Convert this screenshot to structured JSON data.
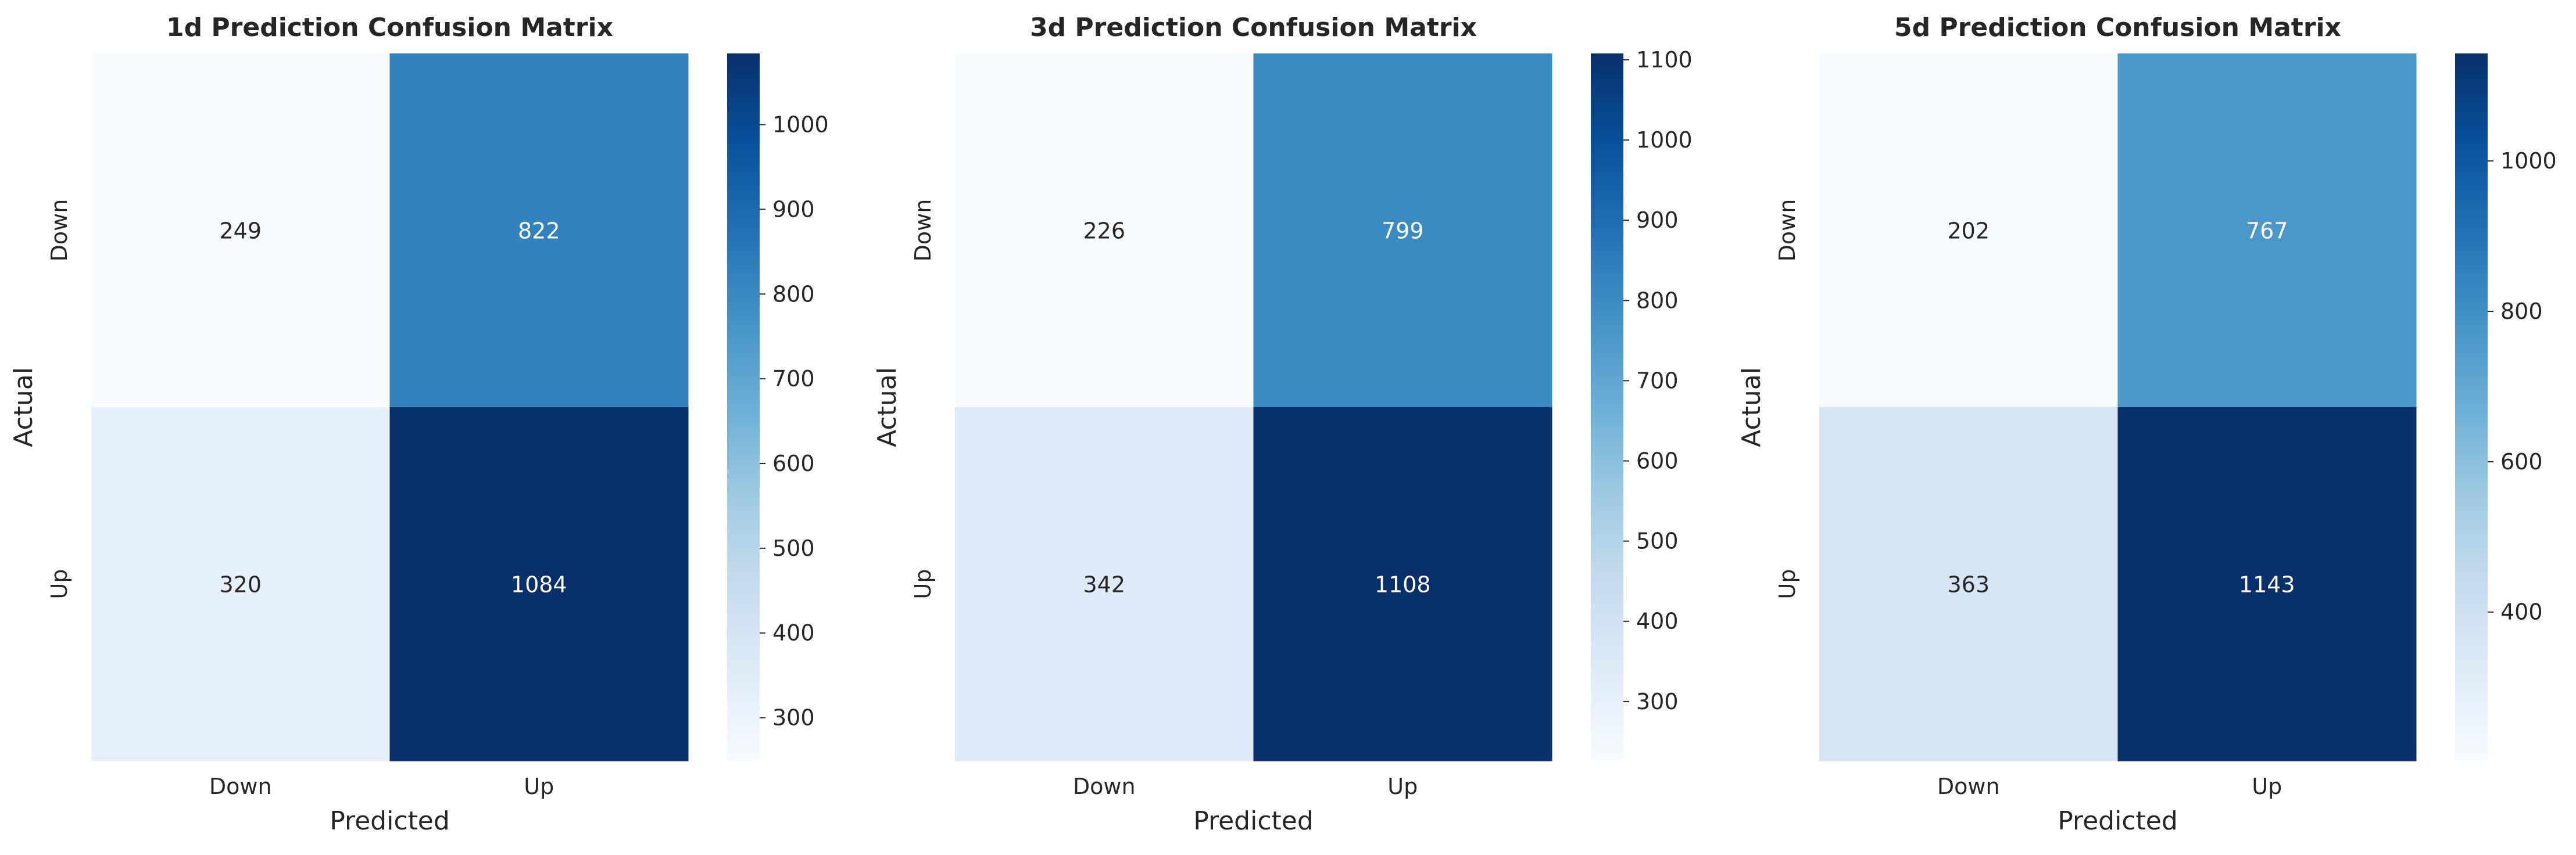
{
  "colormap": "Blues",
  "chart_data": [
    {
      "type": "heatmap",
      "title": "1d Prediction Confusion Matrix",
      "xlabel": "Predicted",
      "ylabel": "Actual",
      "x_categories": [
        "Down",
        "Up"
      ],
      "y_categories": [
        "Down",
        "Up"
      ],
      "values": [
        [
          249,
          822
        ],
        [
          320,
          1084
        ]
      ],
      "colorbar": {
        "ticks": [
          300,
          400,
          500,
          600,
          700,
          800,
          900,
          1000
        ],
        "range": [
          249,
          1084
        ]
      },
      "grid": false
    },
    {
      "type": "heatmap",
      "title": "3d Prediction Confusion Matrix",
      "xlabel": "Predicted",
      "ylabel": "Actual",
      "x_categories": [
        "Down",
        "Up"
      ],
      "y_categories": [
        "Down",
        "Up"
      ],
      "values": [
        [
          226,
          799
        ],
        [
          342,
          1108
        ]
      ],
      "colorbar": {
        "ticks": [
          300,
          400,
          500,
          600,
          700,
          800,
          900,
          1000,
          1100
        ],
        "range": [
          226,
          1108
        ]
      },
      "grid": false
    },
    {
      "type": "heatmap",
      "title": "5d Prediction Confusion Matrix",
      "xlabel": "Predicted",
      "ylabel": "Actual",
      "x_categories": [
        "Down",
        "Up"
      ],
      "y_categories": [
        "Down",
        "Up"
      ],
      "values": [
        [
          202,
          767
        ],
        [
          363,
          1143
        ]
      ],
      "colorbar": {
        "ticks": [
          400,
          600,
          800,
          1000
        ],
        "range": [
          202,
          1143
        ]
      },
      "grid": false
    }
  ]
}
